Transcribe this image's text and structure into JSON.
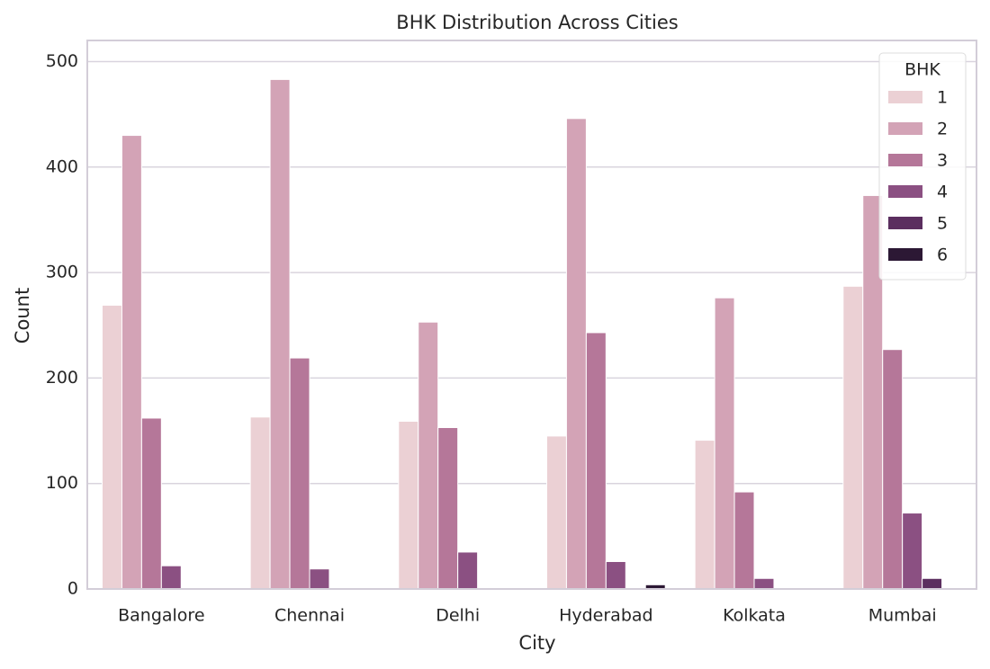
{
  "chart_data": {
    "type": "bar",
    "title": "BHK Distribution Across Cities",
    "x_label": "City",
    "y_label": "Count",
    "categories": [
      "Bangalore",
      "Chennai",
      "Delhi",
      "Hyderabad",
      "Kolkata",
      "Mumbai"
    ],
    "legend_title": "BHK",
    "legend_position": "upper right",
    "grid": true,
    "series": [
      {
        "name": "1",
        "color": "#ebd0d4",
        "values": [
          269,
          163,
          159,
          145,
          141,
          287
        ]
      },
      {
        "name": "2",
        "color": "#d3a3b6",
        "values": [
          430,
          483,
          253,
          446,
          276,
          373
        ]
      },
      {
        "name": "3",
        "color": "#b57799",
        "values": [
          162,
          219,
          153,
          243,
          92,
          227
        ]
      },
      {
        "name": "4",
        "color": "#8b5082",
        "values": [
          22,
          19,
          35,
          26,
          10,
          72
        ]
      },
      {
        "name": "5",
        "color": "#5b2e5f",
        "values": [
          0,
          0,
          0,
          0,
          0,
          10
        ]
      },
      {
        "name": "6",
        "color": "#2c1834",
        "values": [
          0,
          0,
          0,
          4,
          0,
          0
        ]
      }
    ],
    "ylim": [
      0,
      520
    ],
    "yticks": [
      0,
      100,
      200,
      300,
      400,
      500
    ]
  }
}
